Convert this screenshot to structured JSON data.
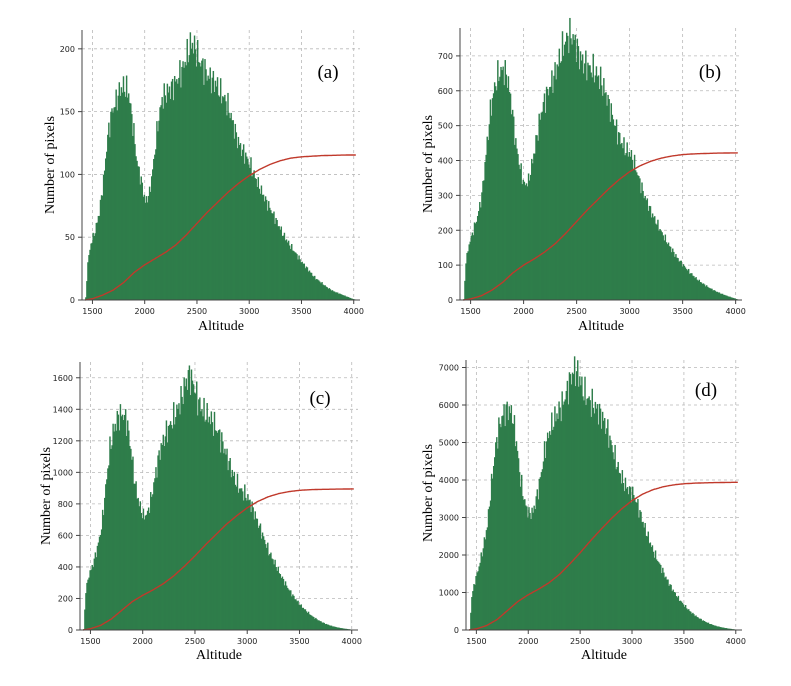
{
  "chart_data": [
    {
      "type": "area",
      "panel_label": "(a)",
      "xlabel": "Altitude",
      "ylabel": "Number of pixels",
      "xlim": [
        1400,
        4060
      ],
      "ylim": [
        0,
        215
      ],
      "xticks": [
        1500,
        2000,
        2500,
        3000,
        3500,
        4000
      ],
      "yticks": [
        0,
        50,
        100,
        150,
        200
      ],
      "grid": true,
      "histogram_color": "#2e7d4a",
      "cumulative_color": "#c0392b",
      "series": [
        {
          "type": "area",
          "x": [
            1430,
            1450,
            1480,
            1520,
            1560,
            1600,
            1640,
            1680,
            1720,
            1760,
            1800,
            1840,
            1880,
            1920,
            1960,
            2000,
            2040,
            2080,
            2120,
            2160,
            2200,
            2240,
            2280,
            2320,
            2360,
            2400,
            2440,
            2480,
            2520,
            2560,
            2600,
            2640,
            2680,
            2720,
            2760,
            2800,
            2840,
            2880,
            2920,
            2960,
            3000,
            3040,
            3080,
            3120,
            3160,
            3200,
            3260,
            3320,
            3380,
            3440,
            3500,
            3560,
            3620,
            3680,
            3740,
            3800,
            3860,
            3920,
            3980,
            4030
          ],
          "values": [
            2,
            30,
            45,
            55,
            70,
            95,
            130,
            150,
            158,
            168,
            170,
            165,
            140,
            110,
            95,
            78,
            85,
            110,
            140,
            160,
            165,
            168,
            172,
            178,
            185,
            195,
            205,
            200,
            190,
            185,
            178,
            175,
            172,
            165,
            160,
            152,
            140,
            128,
            120,
            115,
            108,
            100,
            92,
            85,
            78,
            72,
            62,
            52,
            44,
            37,
            30,
            24,
            18,
            14,
            10,
            7,
            5,
            3,
            1,
            0
          ]
        },
        {
          "type": "line",
          "x": [
            1430,
            1500,
            1600,
            1700,
            1800,
            1900,
            2000,
            2100,
            2200,
            2300,
            2400,
            2500,
            2600,
            2700,
            2800,
            2900,
            3000,
            3100,
            3200,
            3300,
            3400,
            3500,
            3600,
            3700,
            3800,
            3900,
            4020
          ],
          "values": [
            0,
            1,
            4,
            8,
            14,
            22,
            28,
            33,
            38,
            44,
            52,
            61,
            70,
            78,
            86,
            93,
            99,
            104,
            108,
            111,
            113,
            114,
            114.5,
            115,
            115.2,
            115.4,
            115.5
          ]
        }
      ]
    },
    {
      "type": "area",
      "panel_label": "(b)",
      "xlabel": "Altitude",
      "ylabel": "Number of pixels",
      "xlim": [
        1400,
        4060
      ],
      "ylim": [
        0,
        780
      ],
      "xticks": [
        1500,
        2000,
        2500,
        3000,
        3500,
        4000
      ],
      "yticks": [
        0,
        100,
        200,
        300,
        400,
        500,
        600,
        700
      ],
      "grid": true,
      "histogram_color": "#2e7d4a",
      "cumulative_color": "#c0392b",
      "series": [
        {
          "type": "area",
          "x": [
            1430,
            1450,
            1480,
            1520,
            1560,
            1600,
            1640,
            1680,
            1720,
            1760,
            1800,
            1840,
            1880,
            1920,
            1960,
            2000,
            2040,
            2080,
            2120,
            2160,
            2200,
            2240,
            2280,
            2320,
            2360,
            2400,
            2440,
            2480,
            2520,
            2560,
            2600,
            2640,
            2680,
            2720,
            2760,
            2800,
            2840,
            2880,
            2920,
            2960,
            3000,
            3040,
            3080,
            3120,
            3160,
            3200,
            3260,
            3320,
            3380,
            3440,
            3500,
            3560,
            3620,
            3680,
            3740,
            3800,
            3860,
            3920,
            3980,
            4030
          ],
          "values": [
            2,
            110,
            160,
            200,
            240,
            300,
            420,
            540,
            610,
            650,
            660,
            640,
            560,
            450,
            380,
            330,
            340,
            400,
            470,
            540,
            580,
            610,
            640,
            680,
            720,
            750,
            760,
            740,
            700,
            680,
            670,
            660,
            650,
            630,
            600,
            560,
            520,
            480,
            450,
            430,
            420,
            390,
            350,
            310,
            280,
            250,
            215,
            180,
            150,
            122,
            100,
            80,
            62,
            48,
            36,
            26,
            18,
            11,
            5,
            0
          ]
        },
        {
          "type": "line",
          "x": [
            1430,
            1500,
            1600,
            1700,
            1800,
            1900,
            2000,
            2100,
            2200,
            2300,
            2400,
            2500,
            2600,
            2700,
            2800,
            2900,
            3000,
            3100,
            3200,
            3300,
            3400,
            3500,
            3600,
            3700,
            3800,
            3900,
            4020
          ],
          "values": [
            0,
            3,
            12,
            28,
            50,
            78,
            100,
            118,
            138,
            162,
            192,
            225,
            258,
            288,
            318,
            345,
            368,
            385,
            398,
            407,
            413,
            417,
            419,
            420,
            421,
            421.5,
            422
          ]
        }
      ]
    },
    {
      "type": "area",
      "panel_label": "(c)",
      "xlabel": "Altitude",
      "ylabel": "Number of pixels",
      "xlim": [
        1400,
        4060
      ],
      "ylim": [
        0,
        1700
      ],
      "xticks": [
        1500,
        2000,
        2500,
        3000,
        3500,
        4000
      ],
      "yticks": [
        0,
        200,
        400,
        600,
        800,
        1000,
        1200,
        1400,
        1600
      ],
      "grid": true,
      "histogram_color": "#2e7d4a",
      "cumulative_color": "#c0392b",
      "series": [
        {
          "type": "area",
          "x": [
            1430,
            1450,
            1480,
            1520,
            1560,
            1600,
            1640,
            1680,
            1720,
            1760,
            1800,
            1840,
            1880,
            1920,
            1960,
            2000,
            2040,
            2080,
            2120,
            2160,
            2200,
            2240,
            2280,
            2320,
            2360,
            2400,
            2440,
            2480,
            2520,
            2560,
            2600,
            2640,
            2680,
            2720,
            2760,
            2800,
            2840,
            2880,
            2920,
            2960,
            3000,
            3040,
            3080,
            3120,
            3160,
            3200,
            3260,
            3320,
            3380,
            3440,
            3500,
            3560,
            3620,
            3680,
            3740,
            3800,
            3860,
            3920,
            3980,
            4030
          ],
          "values": [
            5,
            250,
            350,
            420,
            520,
            650,
            900,
            1150,
            1280,
            1350,
            1370,
            1330,
            1150,
            930,
            800,
            720,
            740,
            850,
            1000,
            1140,
            1220,
            1280,
            1330,
            1390,
            1460,
            1560,
            1620,
            1560,
            1460,
            1400,
            1370,
            1340,
            1300,
            1250,
            1180,
            1100,
            1020,
            950,
            900,
            870,
            840,
            780,
            710,
            640,
            570,
            500,
            420,
            340,
            270,
            210,
            160,
            120,
            85,
            60,
            40,
            26,
            16,
            9,
            4,
            0
          ]
        },
        {
          "type": "line",
          "x": [
            1430,
            1500,
            1600,
            1700,
            1800,
            1900,
            2000,
            2100,
            2200,
            2300,
            2400,
            2500,
            2600,
            2700,
            2800,
            2900,
            3000,
            3100,
            3200,
            3300,
            3400,
            3500,
            3600,
            3700,
            3800,
            3900,
            4020
          ],
          "values": [
            0,
            8,
            30,
            70,
            125,
            180,
            220,
            255,
            295,
            345,
            405,
            470,
            540,
            605,
            670,
            725,
            775,
            815,
            845,
            865,
            878,
            886,
            890,
            892,
            893,
            894,
            895
          ]
        }
      ]
    },
    {
      "type": "area",
      "panel_label": "(d)",
      "xlabel": "Altitude",
      "ylabel": "Number of pixels",
      "xlim": [
        1400,
        4060
      ],
      "ylim": [
        0,
        7200
      ],
      "xticks": [
        1500,
        2000,
        2500,
        3000,
        3500,
        4000
      ],
      "yticks": [
        0,
        1000,
        2000,
        3000,
        4000,
        5000,
        6000,
        7000
      ],
      "grid": true,
      "histogram_color": "#2e7d4a",
      "cumulative_color": "#c0392b",
      "series": [
        {
          "type": "area",
          "x": [
            1430,
            1450,
            1480,
            1520,
            1560,
            1600,
            1640,
            1680,
            1720,
            1760,
            1800,
            1840,
            1880,
            1920,
            1960,
            2000,
            2040,
            2080,
            2120,
            2160,
            2200,
            2240,
            2280,
            2320,
            2360,
            2400,
            2440,
            2480,
            2520,
            2560,
            2600,
            2640,
            2680,
            2720,
            2760,
            2800,
            2840,
            2880,
            2920,
            2960,
            3000,
            3040,
            3080,
            3120,
            3160,
            3200,
            3260,
            3320,
            3380,
            3440,
            3500,
            3560,
            3620,
            3680,
            3740,
            3800,
            3860,
            3920,
            3980,
            4030
          ],
          "values": [
            20,
            900,
            1300,
            1700,
            2200,
            2800,
            3900,
            4900,
            5500,
            5800,
            5900,
            5750,
            5000,
            4000,
            3400,
            3100,
            3150,
            3600,
            4200,
            4900,
            5300,
            5600,
            5800,
            6000,
            6300,
            6700,
            6950,
            6800,
            6400,
            6200,
            6050,
            5950,
            5800,
            5600,
            5300,
            4900,
            4500,
            4150,
            3900,
            3750,
            3650,
            3400,
            3050,
            2700,
            2400,
            2100,
            1750,
            1400,
            1100,
            850,
            650,
            480,
            350,
            250,
            170,
            110,
            70,
            40,
            18,
            0
          ]
        },
        {
          "type": "line",
          "x": [
            1430,
            1500,
            1600,
            1700,
            1800,
            1900,
            2000,
            2100,
            2200,
            2300,
            2400,
            2500,
            2600,
            2700,
            2800,
            2900,
            3000,
            3100,
            3200,
            3300,
            3400,
            3500,
            3600,
            3700,
            3800,
            3900,
            4020
          ],
          "values": [
            0,
            30,
            120,
            280,
            520,
            760,
            940,
            1090,
            1260,
            1480,
            1760,
            2060,
            2380,
            2680,
            2970,
            3230,
            3450,
            3620,
            3740,
            3820,
            3870,
            3900,
            3915,
            3925,
            3930,
            3935,
            3940
          ]
        }
      ]
    }
  ]
}
